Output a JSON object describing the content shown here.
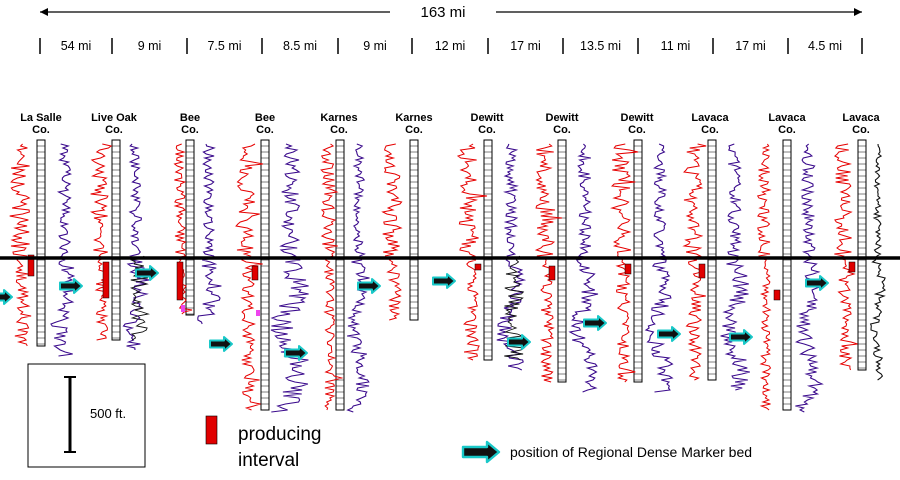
{
  "header": {
    "total_distance": "163 mi",
    "spacings": [
      "54 mi",
      "9 mi",
      "7.5 mi",
      "8.5 mi",
      "9 mi",
      "12 mi",
      "17 mi",
      "13.5 mi",
      "11 mi",
      "17 mi",
      "4.5 mi"
    ]
  },
  "wells": [
    {
      "county": "La Salle",
      "suffix": "Co."
    },
    {
      "county": "Live Oak",
      "suffix": "Co."
    },
    {
      "county": "Bee",
      "suffix": "Co."
    },
    {
      "county": "Bee",
      "suffix": "Co."
    },
    {
      "county": "Karnes",
      "suffix": "Co."
    },
    {
      "county": "Karnes",
      "suffix": "Co."
    },
    {
      "county": "Dewitt",
      "suffix": "Co."
    },
    {
      "county": "Dewitt",
      "suffix": "Co."
    },
    {
      "county": "Dewitt",
      "suffix": "Co."
    },
    {
      "county": "Lavaca",
      "suffix": "Co."
    },
    {
      "county": "Lavaca",
      "suffix": "Co."
    },
    {
      "county": "Lavaca",
      "suffix": "Co."
    }
  ],
  "scale": {
    "label": "500 ft."
  },
  "legend": {
    "producing_line1": "producing",
    "producing_line2": "interval",
    "marker_label": "position of Regional Dense Marker bed"
  },
  "colors": {
    "gamma_ray": "#e60000",
    "resistivity": "#3a0a8c",
    "resistivity_alt": "#111111",
    "producing": "#e00000",
    "arrow_fill": "#111111",
    "arrow_outline": "#19c8c8",
    "datum": "#000000",
    "pink": "#ee44ee"
  }
}
